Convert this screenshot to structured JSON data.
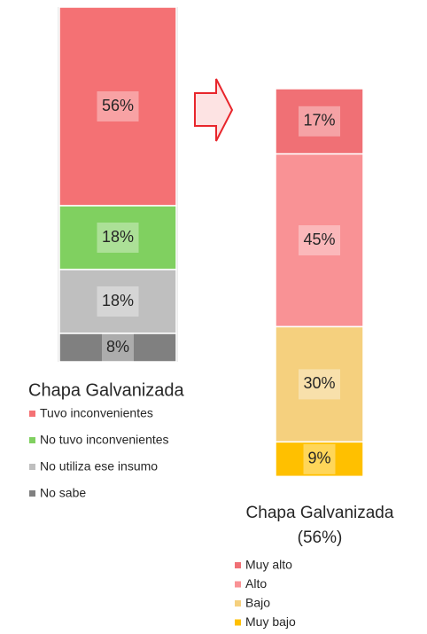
{
  "chart_data": [
    {
      "type": "stacked_bar",
      "title": "Chapa Galvanizada",
      "series": [
        {
          "name": "Tuvo inconvenientes",
          "color": "#f47174",
          "values": [
            56
          ],
          "value_labels": [
            "56%"
          ]
        },
        {
          "name": "No tuvo inconvenientes",
          "color": "#80d060",
          "values": [
            18
          ],
          "value_labels": [
            "18%"
          ]
        },
        {
          "name": "No utiliza ese insumo",
          "color": "#bfbfbf",
          "values": [
            18
          ],
          "value_labels": [
            "18%"
          ]
        },
        {
          "name": "No sabe",
          "color": "#808080",
          "values": [
            8
          ],
          "value_labels": [
            "8%"
          ]
        }
      ]
    },
    {
      "type": "stacked_bar",
      "title": "Chapa Galvanizada",
      "subtitle": "(56%)",
      "series": [
        {
          "name": "Muy alto",
          "color": "#f07075",
          "values": [
            17
          ],
          "value_labels": [
            "17%"
          ]
        },
        {
          "name": "Alto",
          "color": "#f99295",
          "values": [
            45
          ],
          "value_labels": [
            "45%"
          ]
        },
        {
          "name": "Bajo",
          "color": "#f5d07e",
          "values": [
            30
          ],
          "value_labels": [
            "30%"
          ]
        },
        {
          "name": "Muy bajo",
          "color": "#ffc000",
          "values": [
            9
          ],
          "value_labels": [
            "9%"
          ]
        }
      ]
    }
  ]
}
